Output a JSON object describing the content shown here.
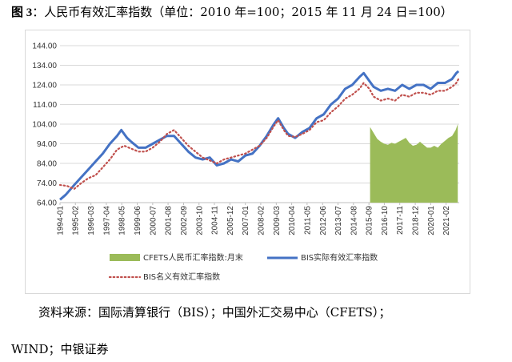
{
  "caption": {
    "prefix": "图 3",
    "text": "：人民币有效汇率指数（单位：2010 年=100；2015 年 11 月 24 日=100）"
  },
  "source": {
    "line1": "资料来源：国际清算银行（BIS）；中国外汇交易中心（CFETS）；",
    "line2": "WIND；中银证券"
  },
  "chart_data": {
    "type": "line",
    "ylim": [
      64,
      144
    ],
    "yticks": [
      "64.00",
      "74.00",
      "84.00",
      "94.00",
      "104.00",
      "114.00",
      "124.00",
      "134.00",
      "144.00"
    ],
    "xticks": [
      "1994-01",
      "1995-02",
      "1996-03",
      "1997-04",
      "1998-05",
      "1999-06",
      "2000-07",
      "2001-08",
      "2002-09",
      "2003-10",
      "2004-11",
      "2005-12",
      "2007-01",
      "2008-02",
      "2009-03",
      "2010-04",
      "2011-05",
      "2012-06",
      "2013-07",
      "2014-08",
      "2015-09",
      "2016-10",
      "2017-11",
      "2018-12",
      "2020-01",
      "2021-02"
    ],
    "xticks_t": [
      1994.0,
      1995.08,
      1996.17,
      1997.25,
      1998.33,
      1999.42,
      2000.5,
      2001.58,
      2002.67,
      2003.75,
      2004.83,
      2005.92,
      2007.0,
      2008.08,
      2009.17,
      2010.25,
      2011.33,
      2012.42,
      2013.5,
      2014.58,
      2015.67,
      2016.75,
      2017.83,
      2018.92,
      2020.0,
      2021.08
    ],
    "xlim": [
      1994.0,
      2022.0
    ],
    "legend": [
      "CFETS人民币汇率指数:月末",
      "BIS实际有效汇率指数",
      "BIS名义有效汇率指数"
    ],
    "series": [
      {
        "name": "CFETS人民币汇率指数:月末",
        "style": "area",
        "color": "#9bbb59",
        "x": [
          2015.75,
          2016.0,
          2016.25,
          2016.5,
          2016.75,
          2017.0,
          2017.25,
          2017.5,
          2017.75,
          2018.0,
          2018.25,
          2018.5,
          2018.75,
          2019.0,
          2019.25,
          2019.5,
          2019.75,
          2020.0,
          2020.25,
          2020.5,
          2020.75,
          2021.0,
          2021.25,
          2021.5,
          2021.75,
          2021.9
        ],
        "y": [
          102.5,
          99.5,
          96.5,
          95,
          94,
          93.5,
          94.5,
          94,
          95,
          96,
          97,
          94.5,
          93,
          93.5,
          95,
          93.5,
          92,
          92,
          93,
          92,
          94,
          95.5,
          97,
          98,
          101,
          104
        ]
      },
      {
        "name": "BIS实际有效汇率指数",
        "style": "line",
        "color": "#4472c4",
        "x": [
          1994.0,
          1994.4,
          1995.0,
          1995.5,
          1996.0,
          1996.5,
          1997.0,
          1997.5,
          1998.0,
          1998.3,
          1998.7,
          1999.0,
          1999.5,
          2000.0,
          2000.5,
          2001.0,
          2001.5,
          2002.0,
          2002.5,
          2003.0,
          2003.5,
          2004.0,
          2004.5,
          2005.0,
          2005.5,
          2006.0,
          2006.5,
          2007.0,
          2007.5,
          2008.0,
          2008.5,
          2009.0,
          2009.3,
          2009.7,
          2010.0,
          2010.5,
          2011.0,
          2011.5,
          2012.0,
          2012.5,
          2013.0,
          2013.5,
          2014.0,
          2014.5,
          2015.0,
          2015.3,
          2015.7,
          2016.0,
          2016.5,
          2017.0,
          2017.5,
          2018.0,
          2018.5,
          2019.0,
          2019.5,
          2020.0,
          2020.5,
          2021.0,
          2021.5,
          2021.8,
          2021.95
        ],
        "y": [
          65.5,
          68,
          73,
          77,
          81,
          85,
          89,
          94,
          98,
          101,
          97,
          95,
          92,
          92,
          94,
          96,
          98,
          98,
          94,
          90,
          87,
          86,
          87,
          83,
          84,
          86,
          85,
          88,
          89,
          93,
          98,
          104,
          107,
          102,
          99,
          97,
          100,
          102,
          107,
          109,
          114,
          117,
          122,
          124,
          128,
          130,
          126,
          123,
          121,
          122,
          121,
          124,
          122,
          124,
          124,
          122,
          125,
          125,
          127,
          130,
          131
        ]
      },
      {
        "name": "BIS名义有效汇率指数",
        "style": "dotted",
        "color": "#c0504d",
        "x": [
          1994.0,
          1994.5,
          1995.0,
          1995.5,
          1996.0,
          1996.5,
          1997.0,
          1997.5,
          1998.0,
          1998.5,
          1999.0,
          1999.5,
          2000.0,
          2000.5,
          2001.0,
          2001.5,
          2002.0,
          2002.5,
          2003.0,
          2003.5,
          2004.0,
          2004.5,
          2005.0,
          2005.5,
          2006.0,
          2006.5,
          2007.0,
          2007.5,
          2008.0,
          2008.5,
          2009.0,
          2009.3,
          2009.7,
          2010.0,
          2010.5,
          2011.0,
          2011.5,
          2012.0,
          2012.5,
          2013.0,
          2013.5,
          2014.0,
          2014.5,
          2015.0,
          2015.3,
          2015.7,
          2016.0,
          2016.5,
          2017.0,
          2017.5,
          2018.0,
          2018.5,
          2019.0,
          2019.5,
          2020.0,
          2020.5,
          2021.0,
          2021.5,
          2021.8,
          2021.95
        ],
        "y": [
          73,
          72.5,
          71,
          74,
          76.5,
          78,
          82,
          86,
          91,
          93,
          91.5,
          90,
          90,
          92,
          95,
          99,
          101,
          97,
          93,
          90,
          87,
          85.5,
          84,
          86,
          87,
          88,
          89,
          91,
          93,
          97,
          103,
          106,
          101,
          98,
          97.5,
          99,
          101,
          105,
          106,
          110,
          113,
          117,
          119,
          122,
          125,
          122,
          118,
          116,
          117,
          116,
          119,
          118,
          120,
          120,
          119,
          121,
          121,
          123,
          125,
          127
        ]
      }
    ]
  }
}
